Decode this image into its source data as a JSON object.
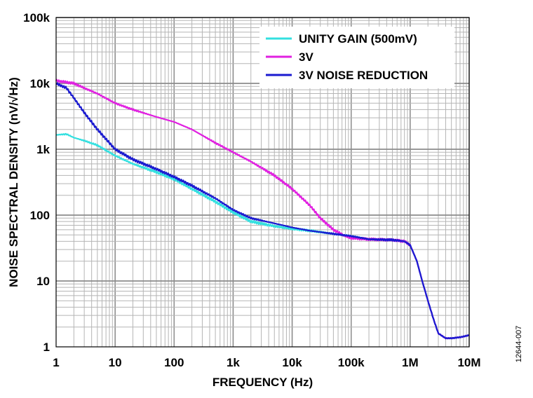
{
  "chart_data": {
    "type": "line",
    "xlabel": "FREQUENCY (Hz)",
    "ylabel": "NOISE SPECTRAL DENSITY (nV/√Hz)",
    "x_scale": "log",
    "y_scale": "log",
    "xlim": [
      1,
      10000000
    ],
    "ylim": [
      1,
      100000
    ],
    "grid": true,
    "legend_position": "top-right",
    "x_tick_labels": [
      "1",
      "10",
      "100",
      "1k",
      "10k",
      "100k",
      "1M",
      "10M"
    ],
    "y_tick_labels": [
      "1",
      "10",
      "100",
      "1k",
      "10k",
      "100k"
    ],
    "figure_id": "12644-007",
    "series": [
      {
        "name": "UNITY GAIN (500mV)",
        "color": "#33e0e0",
        "x": [
          1,
          1.5,
          2,
          3,
          5,
          10,
          20,
          50,
          100,
          200,
          500,
          1000,
          2000,
          5000,
          10000,
          20000,
          50000,
          100000,
          200000,
          500000,
          800000,
          1000000,
          1300000,
          1600000,
          2000000,
          2500000,
          3000000,
          4000000,
          5000000,
          7000000,
          10000000
        ],
        "y": [
          1650,
          1700,
          1500,
          1350,
          1150,
          800,
          600,
          450,
          350,
          250,
          160,
          110,
          80,
          68,
          62,
          58,
          52,
          48,
          43,
          42,
          40,
          35,
          20,
          10,
          5,
          2.6,
          1.6,
          1.35,
          1.35,
          1.4,
          1.5
        ]
      },
      {
        "name": "3V",
        "color": "#e020e0",
        "x": [
          1,
          2,
          3,
          5,
          10,
          20,
          50,
          100,
          200,
          500,
          1000,
          2000,
          5000,
          10000,
          20000,
          30000,
          50000,
          80000,
          100000,
          200000,
          500000,
          800000,
          1000000,
          1300000,
          1600000,
          2000000,
          2500000,
          3000000,
          4000000,
          5000000,
          7000000,
          10000000
        ],
        "y": [
          11000,
          10000,
          8500,
          7000,
          5000,
          4000,
          3100,
          2600,
          2000,
          1250,
          900,
          650,
          400,
          250,
          140,
          90,
          60,
          48,
          45,
          43,
          42,
          40,
          35,
          20,
          10,
          5,
          2.6,
          1.6,
          1.35,
          1.35,
          1.4,
          1.5
        ]
      },
      {
        "name": "3V NOISE REDUCTION",
        "color": "#1a1ad0",
        "x": [
          1,
          1.5,
          2,
          3,
          5,
          10,
          20,
          50,
          100,
          200,
          500,
          1000,
          2000,
          5000,
          10000,
          20000,
          50000,
          100000,
          200000,
          500000,
          800000,
          1000000,
          1300000,
          1600000,
          2000000,
          2500000,
          3000000,
          4000000,
          5000000,
          7000000,
          10000000
        ],
        "y": [
          10000,
          8500,
          6000,
          3600,
          2000,
          1000,
          700,
          500,
          380,
          280,
          180,
          120,
          90,
          75,
          65,
          58,
          52,
          48,
          43,
          42,
          40,
          35,
          20,
          10,
          5,
          2.6,
          1.6,
          1.35,
          1.35,
          1.4,
          1.5
        ]
      }
    ]
  }
}
